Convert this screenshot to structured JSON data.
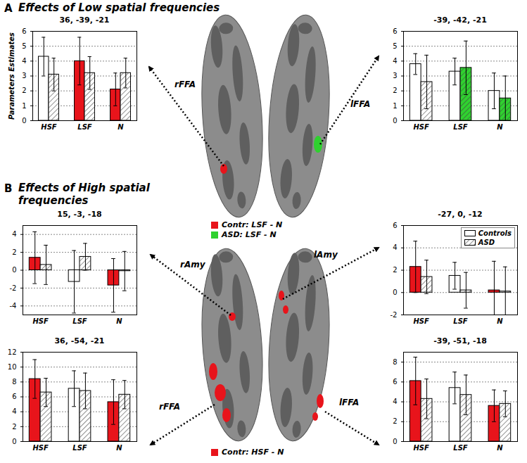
{
  "panels": [
    {
      "letter": "A",
      "title": "Effects of Low spatial frequencies",
      "contrasts": [
        {
          "name": "Contr: LSF - N",
          "color": "#e8141b"
        },
        {
          "name": "ASD: LSF - N",
          "color": "#2fd12f"
        }
      ]
    },
    {
      "letter": "B",
      "title": "Effects of High spatial frequencies",
      "contrasts": [
        {
          "name": "Contr: HSF - N",
          "color": "#e8141b"
        }
      ]
    }
  ],
  "chart_data": [
    {
      "type": "bar",
      "panel": "A",
      "region": "rFFA",
      "title": "36, -39, -21",
      "ylabel": "Parameters Estimates",
      "categories": [
        "HSF",
        "LSF",
        "N"
      ],
      "series": [
        {
          "name": "Controls",
          "color": "#ffffff",
          "colors": [
            "#ffffff",
            "#e8141b",
            "#e8141b"
          ],
          "values": [
            4.3,
            4.0,
            2.1
          ],
          "errors": [
            1.3,
            1.6,
            1.1
          ]
        },
        {
          "name": "ASD",
          "color": "#ffffff",
          "colors": [
            "#ffffff",
            "#ffffff",
            "#ffffff"
          ],
          "values": [
            3.1,
            3.2,
            3.2
          ],
          "errors": [
            1.1,
            1.1,
            1.0
          ]
        }
      ],
      "ylim": [
        0,
        6
      ],
      "yticks": [
        0,
        1,
        2,
        3,
        4,
        5,
        6
      ],
      "grid": true
    },
    {
      "type": "bar",
      "panel": "A",
      "region": "lFFA",
      "title": "-39, -42, -21",
      "categories": [
        "HSF",
        "LSF",
        "N"
      ],
      "series": [
        {
          "name": "Controls",
          "color": "#ffffff",
          "colors": [
            "#ffffff",
            "#ffffff",
            "#ffffff"
          ],
          "values": [
            3.8,
            3.3,
            2.0
          ],
          "errors": [
            0.7,
            0.9,
            1.2
          ]
        },
        {
          "name": "ASD",
          "color": "#ffffff",
          "colors": [
            "#ffffff",
            "#2fd12f",
            "#2fd12f"
          ],
          "values": [
            2.6,
            3.55,
            1.5
          ],
          "errors": [
            1.8,
            1.8,
            1.5
          ]
        }
      ],
      "ylim": [
        0,
        6
      ],
      "yticks": [
        0,
        1,
        2,
        3,
        4,
        5,
        6
      ],
      "grid": true
    },
    {
      "type": "bar",
      "panel": "B",
      "region": "rAmy",
      "title": "15, -3, -18",
      "categories": [
        "HSF",
        "LSF",
        "N"
      ],
      "series": [
        {
          "name": "Controls",
          "color": "#ffffff",
          "colors": [
            "#e8141b",
            "#ffffff",
            "#e8141b"
          ],
          "values": [
            1.4,
            -1.3,
            -1.7
          ],
          "errors": [
            2.9,
            3.5,
            3.0
          ]
        },
        {
          "name": "ASD",
          "color": "#ffffff",
          "colors": [
            "#ffffff",
            "#ffffff",
            "#ffffff"
          ],
          "values": [
            0.6,
            1.5,
            -0.1
          ],
          "errors": [
            2.2,
            1.5,
            2.2
          ]
        }
      ],
      "ylim": [
        -5,
        5
      ],
      "yticks": [
        -4,
        -2,
        0,
        2,
        4
      ],
      "grid": true
    },
    {
      "type": "bar",
      "panel": "B",
      "region": "lAmy",
      "title": "-27, 0, -12",
      "categories": [
        "HSF",
        "LSF",
        "N"
      ],
      "series": [
        {
          "name": "Controls",
          "color": "#ffffff",
          "colors": [
            "#e8141b",
            "#ffffff",
            "#e8141b"
          ],
          "values": [
            2.3,
            1.5,
            0.2
          ],
          "errors": [
            2.3,
            1.2,
            2.6
          ]
        },
        {
          "name": "ASD",
          "color": "#ffffff",
          "colors": [
            "#ffffff",
            "#ffffff",
            "#ffffff"
          ],
          "values": [
            1.4,
            0.2,
            0.1
          ],
          "errors": [
            1.5,
            1.6,
            2.2
          ]
        }
      ],
      "ylim": [
        -2,
        6
      ],
      "yticks": [
        -2,
        0,
        2,
        4,
        6
      ],
      "grid": true,
      "legend": "upper right"
    },
    {
      "type": "bar",
      "panel": "B",
      "region": "rFFA",
      "title": "36, -54, -21",
      "categories": [
        "HSF",
        "LSF",
        "N"
      ],
      "series": [
        {
          "name": "Controls",
          "color": "#ffffff",
          "colors": [
            "#e8141b",
            "#ffffff",
            "#e8141b"
          ],
          "values": [
            8.4,
            7.1,
            5.3
          ],
          "errors": [
            2.6,
            2.4,
            3.0
          ]
        },
        {
          "name": "ASD",
          "color": "#ffffff",
          "colors": [
            "#ffffff",
            "#ffffff",
            "#ffffff"
          ],
          "values": [
            6.6,
            6.8,
            6.3
          ],
          "errors": [
            1.9,
            2.4,
            1.9
          ]
        }
      ],
      "ylim": [
        0,
        12
      ],
      "yticks": [
        0,
        2,
        4,
        6,
        8,
        10,
        12
      ],
      "grid": true
    },
    {
      "type": "bar",
      "panel": "B",
      "region": "lFFA",
      "title": "-39, -51, -18",
      "categories": [
        "HSF",
        "LSF",
        "N"
      ],
      "series": [
        {
          "name": "Controls",
          "color": "#ffffff",
          "colors": [
            "#e8141b",
            "#ffffff",
            "#e8141b"
          ],
          "values": [
            6.1,
            5.4,
            3.6
          ],
          "errors": [
            2.4,
            1.6,
            1.6
          ]
        },
        {
          "name": "ASD",
          "color": "#ffffff",
          "colors": [
            "#ffffff",
            "#ffffff",
            "#ffffff"
          ],
          "values": [
            4.3,
            4.7,
            3.8
          ],
          "errors": [
            2.0,
            2.0,
            1.3
          ]
        }
      ],
      "ylim": [
        0,
        9
      ],
      "yticks": [
        0,
        2,
        4,
        6,
        8
      ],
      "grid": true
    }
  ]
}
